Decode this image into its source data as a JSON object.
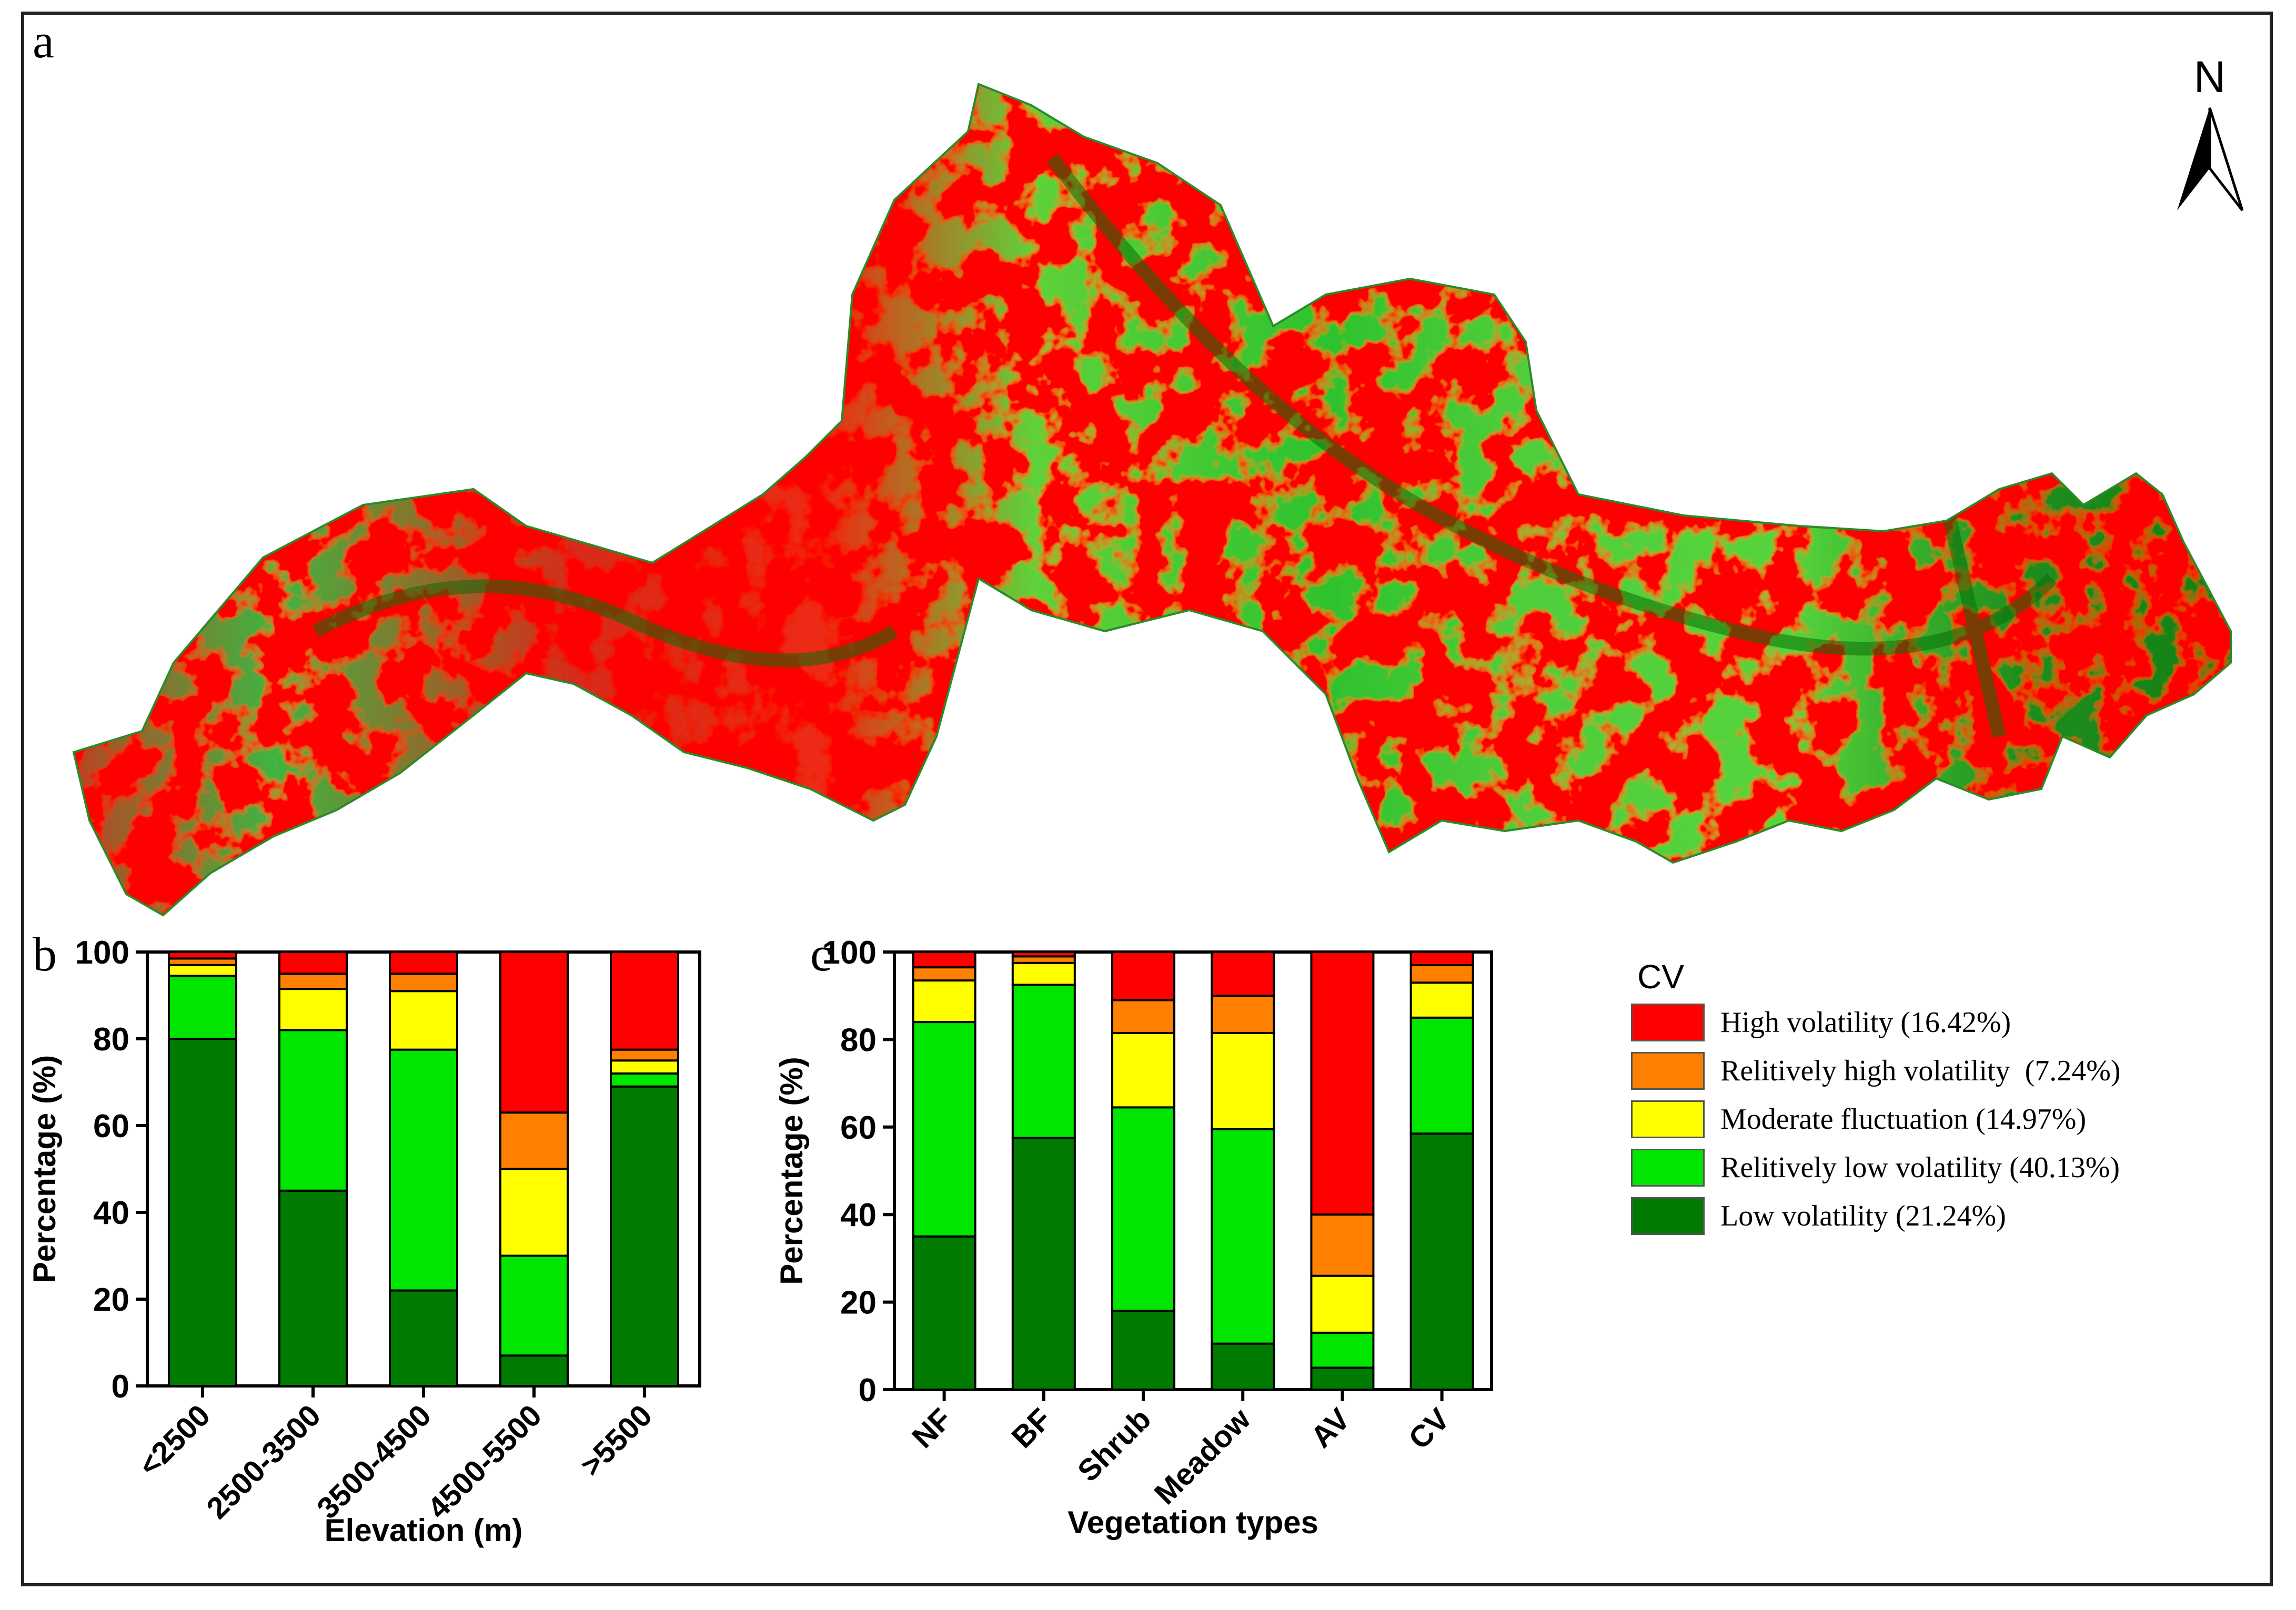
{
  "panels": {
    "a": "a",
    "b": "b",
    "c": "c"
  },
  "map": {
    "north_label": "N",
    "colors": {
      "high": "#ff0000",
      "rel_high": "#ff8000",
      "moderate": "#ffff00",
      "rel_low": "#00e600",
      "low": "#007a00"
    }
  },
  "legend": {
    "title": "CV",
    "items": [
      {
        "label": "High volatility (16.42%)",
        "color": "#ff0000"
      },
      {
        "label": "Relitively high volatility  (7.24%)",
        "color": "#ff8000"
      },
      {
        "label": "Moderate fluctuation (14.97%)",
        "color": "#ffff00"
      },
      {
        "label": "Relitively low volatility (40.13%)",
        "color": "#00e600"
      },
      {
        "label": "Low volatility (21.24%)",
        "color": "#007a00"
      }
    ]
  },
  "chart_data": [
    {
      "type": "bar",
      "stacked": true,
      "title": "",
      "xlabel": "Elevation (m)",
      "ylabel": "Percentage (%)",
      "ylim": [
        0,
        100
      ],
      "yticks": [
        "0",
        "20",
        "40",
        "60",
        "80",
        "100"
      ],
      "categories": [
        "<2500",
        "2500-3500",
        "3500-4500",
        "4500-5500",
        ">5500"
      ],
      "series": [
        {
          "name": "Low volatility",
          "color": "#007a00",
          "values": [
            80,
            45,
            22,
            7,
            69
          ]
        },
        {
          "name": "Relitively low volatility",
          "color": "#00e600",
          "values": [
            14.5,
            37,
            55.5,
            23,
            3
          ]
        },
        {
          "name": "Moderate fluctuation",
          "color": "#ffff00",
          "values": [
            2.5,
            9.5,
            13.5,
            20,
            3
          ]
        },
        {
          "name": "Relitively high volatility",
          "color": "#ff8000",
          "values": [
            1.5,
            3.5,
            4,
            13,
            2.5
          ]
        },
        {
          "name": "High volatility",
          "color": "#ff0000",
          "values": [
            1.5,
            5,
            5,
            37,
            22.5
          ]
        }
      ]
    },
    {
      "type": "bar",
      "stacked": true,
      "title": "",
      "xlabel": "Vegetation types",
      "ylabel": "Percentage (%)",
      "ylim": [
        0,
        100
      ],
      "yticks": [
        "0",
        "20",
        "40",
        "60",
        "80",
        "100"
      ],
      "categories": [
        "NF",
        "BF",
        "Shrub",
        "Meadow",
        "AV",
        "CV"
      ],
      "series": [
        {
          "name": "Low volatility",
          "color": "#007a00",
          "values": [
            35,
            57.5,
            18,
            10.5,
            5,
            58.5
          ]
        },
        {
          "name": "Relitively low volatility",
          "color": "#00e600",
          "values": [
            49,
            35,
            46.5,
            49,
            8,
            26.5
          ]
        },
        {
          "name": "Moderate fluctuation",
          "color": "#ffff00",
          "values": [
            9.5,
            5,
            17,
            22,
            13,
            8
          ]
        },
        {
          "name": "Relitively high volatility",
          "color": "#ff8000",
          "values": [
            3,
            1.5,
            7.5,
            8.5,
            14,
            4
          ]
        },
        {
          "name": "High volatility",
          "color": "#ff0000",
          "values": [
            3.5,
            1,
            11,
            10,
            60,
            3
          ]
        }
      ]
    }
  ]
}
